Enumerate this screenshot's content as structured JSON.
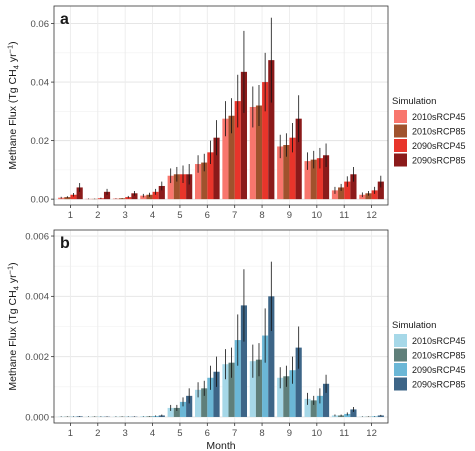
{
  "chart_data": [
    {
      "panel_label": "a",
      "type": "bar",
      "ylabel_main": "Methane Flux (Tg CH",
      "ylabel_sub": "4",
      "ylabel_mid": " yr",
      "ylabel_sup": "−1",
      "ylabel_end": ")",
      "ylim": [
        -0.002,
        0.066
      ],
      "yticks": [
        0.0,
        0.02,
        0.04,
        0.06
      ],
      "ytick_labels": [
        "0.00",
        "0.02",
        "0.04",
        "0.06"
      ],
      "categories": [
        "1",
        "2",
        "3",
        "4",
        "5",
        "6",
        "7",
        "8",
        "9",
        "10",
        "11",
        "12"
      ],
      "legend_title": "Simulation",
      "series": [
        {
          "name": "2010sRCP45",
          "color": "#F8766D",
          "values": [
            0.0005,
            0.0001,
            0.0002,
            0.0012,
            0.008,
            0.012,
            0.0275,
            0.0315,
            0.018,
            0.013,
            0.003,
            0.0015
          ],
          "errors": [
            0.0003,
            0.0001,
            0.0001,
            0.0006,
            0.0025,
            0.003,
            0.006,
            0.007,
            0.004,
            0.003,
            0.0012,
            0.0008
          ]
        },
        {
          "name": "2010sRCP85",
          "color": "#A0522D",
          "values": [
            0.0007,
            0.0001,
            0.0003,
            0.0015,
            0.0085,
            0.0125,
            0.0285,
            0.032,
            0.0185,
            0.0135,
            0.004,
            0.002
          ],
          "errors": [
            0.0003,
            0.0001,
            0.0001,
            0.0007,
            0.0025,
            0.003,
            0.006,
            0.007,
            0.004,
            0.003,
            0.0012,
            0.0008
          ]
        },
        {
          "name": "2090sRCP45",
          "color": "#E8352B",
          "values": [
            0.0015,
            0.0003,
            0.0007,
            0.0025,
            0.0085,
            0.016,
            0.0335,
            0.04,
            0.021,
            0.014,
            0.006,
            0.003
          ],
          "errors": [
            0.0006,
            0.0002,
            0.0004,
            0.001,
            0.003,
            0.004,
            0.009,
            0.01,
            0.005,
            0.0035,
            0.0018,
            0.0012
          ]
        },
        {
          "name": "2090sRCP85",
          "color": "#8B1A1A",
          "values": [
            0.004,
            0.0025,
            0.002,
            0.0045,
            0.0085,
            0.021,
            0.0435,
            0.0475,
            0.0275,
            0.015,
            0.0085,
            0.006
          ],
          "errors": [
            0.0015,
            0.001,
            0.0008,
            0.0015,
            0.0035,
            0.006,
            0.014,
            0.0145,
            0.008,
            0.004,
            0.0025,
            0.002
          ]
        }
      ]
    },
    {
      "panel_label": "b",
      "type": "bar",
      "ylabel_main": "Methane Flux (Tg CH",
      "ylabel_sub": "4",
      "ylabel_mid": " yr",
      "ylabel_sup": "−1",
      "ylabel_end": ")",
      "xlabel": "Month",
      "ylim": [
        -0.0002,
        0.0062
      ],
      "yticks": [
        0.0,
        0.002,
        0.004,
        0.006
      ],
      "ytick_labels": [
        "0.000",
        "0.002",
        "0.004",
        "0.006"
      ],
      "categories": [
        "1",
        "2",
        "3",
        "4",
        "5",
        "6",
        "7",
        "8",
        "9",
        "10",
        "11",
        "12"
      ],
      "legend_title": "Simulation",
      "series": [
        {
          "name": "2010sRCP45",
          "color": "#A6D8E8",
          "values": [
            1e-05,
            1e-05,
            1e-05,
            2e-05,
            0.0003,
            0.0009,
            0.00175,
            0.00185,
            0.0013,
            0.0006,
            5e-05,
            1e-05
          ],
          "errors": [
            1e-05,
            1e-05,
            1e-05,
            1e-05,
            0.0001,
            0.00025,
            0.0005,
            0.00055,
            0.00035,
            0.0002,
            3e-05,
            1e-05
          ]
        },
        {
          "name": "2010sRCP85",
          "color": "#5F7F7A",
          "values": [
            1e-05,
            1e-05,
            1e-05,
            2e-05,
            0.0003,
            0.00095,
            0.0018,
            0.0019,
            0.00135,
            0.00055,
            5e-05,
            1e-05
          ],
          "errors": [
            1e-05,
            1e-05,
            1e-05,
            1e-05,
            0.0001,
            0.00025,
            0.0005,
            0.00055,
            0.00035,
            0.00015,
            3e-05,
            1e-05
          ]
        },
        {
          "name": "2090sRCP45",
          "color": "#6BB7D6",
          "values": [
            1e-05,
            1e-05,
            1e-05,
            3e-05,
            0.0005,
            0.0013,
            0.00255,
            0.0027,
            0.00155,
            0.0007,
            0.0001,
            2e-05
          ],
          "errors": [
            1e-05,
            1e-05,
            1e-05,
            2e-05,
            0.00015,
            0.0004,
            0.00085,
            0.0009,
            0.00045,
            0.00025,
            5e-05,
            1e-05
          ]
        },
        {
          "name": "2090sRCP85",
          "color": "#3D6587",
          "values": [
            2e-05,
            1e-05,
            1e-05,
            5e-05,
            0.0007,
            0.0015,
            0.0037,
            0.004,
            0.0023,
            0.0011,
            0.00025,
            5e-05
          ],
          "errors": [
            1e-05,
            1e-05,
            1e-05,
            3e-05,
            0.00025,
            0.0005,
            0.0012,
            0.00115,
            0.0007,
            0.0003,
            8e-05,
            2e-05
          ]
        }
      ]
    }
  ]
}
